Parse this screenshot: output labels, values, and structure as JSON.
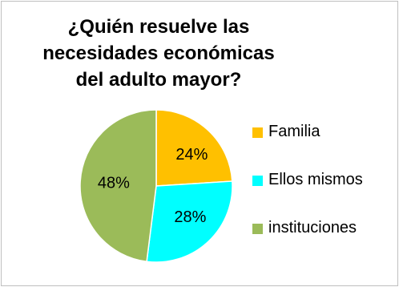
{
  "chart_data": {
    "type": "pie",
    "title_lines": [
      "¿Quién resuelve las",
      "necesidades económicas",
      "del adulto mayor?"
    ],
    "slices": [
      {
        "name": "Familia",
        "value": 24,
        "label": "24%",
        "color": "#ffc000"
      },
      {
        "name": "Ellos mismos",
        "value": 28,
        "label": "28%",
        "color": "#00ffff"
      },
      {
        "name": "instituciones",
        "value": 48,
        "label": "48%",
        "color": "#9bbb59"
      }
    ],
    "legend_position": "right"
  }
}
